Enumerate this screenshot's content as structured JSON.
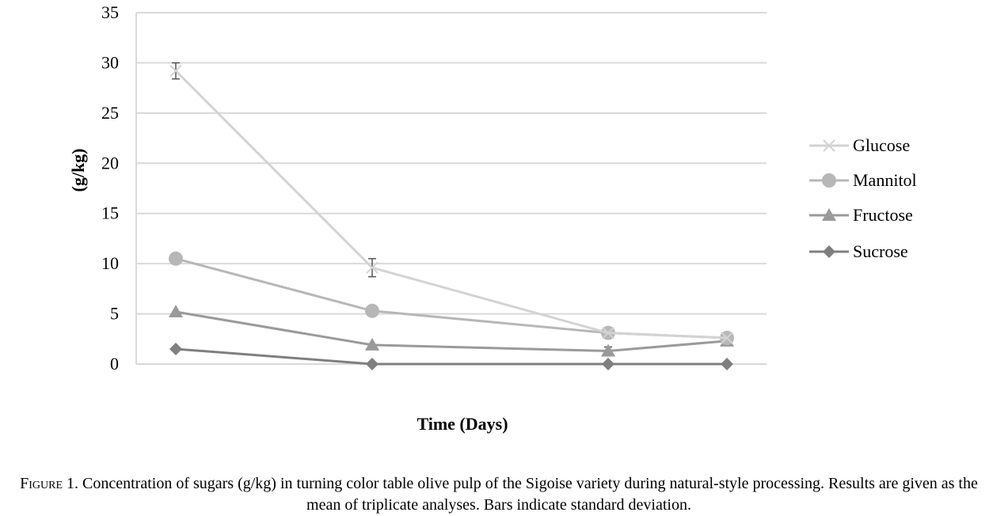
{
  "chart_data": {
    "type": "line",
    "categories": [
      "",
      "",
      "",
      ""
    ],
    "x": [
      0,
      10,
      22,
      28
    ],
    "xlabel": "Time (Days)",
    "ylabel": "(g/kg)",
    "ylim": [
      0,
      35
    ],
    "yticks": [
      0,
      5,
      10,
      15,
      20,
      25,
      30,
      35
    ],
    "grid": true,
    "legend_position": "right",
    "series": [
      {
        "name": "Glucose",
        "marker": "x",
        "color": "#d3d3d3",
        "values": [
          29.2,
          9.6,
          3.1,
          2.6
        ],
        "error": [
          0.8,
          0.9,
          0,
          0
        ]
      },
      {
        "name": "Mannitol",
        "marker": "circle",
        "color": "#b7b7b7",
        "values": [
          10.5,
          5.3,
          3.1,
          2.6
        ],
        "error": [
          0,
          0,
          0,
          0
        ]
      },
      {
        "name": "Fructose",
        "marker": "triangle",
        "color": "#9a9a9a",
        "values": [
          5.2,
          1.9,
          1.3,
          2.3
        ],
        "error": [
          0,
          0,
          0.4,
          0
        ]
      },
      {
        "name": "Sucrose",
        "marker": "diamond",
        "color": "#7f7f7f",
        "values": [
          1.5,
          0.0,
          0.0,
          0.0
        ],
        "error": [
          0,
          0,
          0,
          0
        ]
      }
    ]
  },
  "caption": {
    "label": "Figure 1.",
    "text": " Concentration of sugars (g/kg) in turning color table olive pulp of the Sigoise variety during natural-style processing. Results are given as the mean of triplicate analyses. Bars indicate standard deviation."
  }
}
